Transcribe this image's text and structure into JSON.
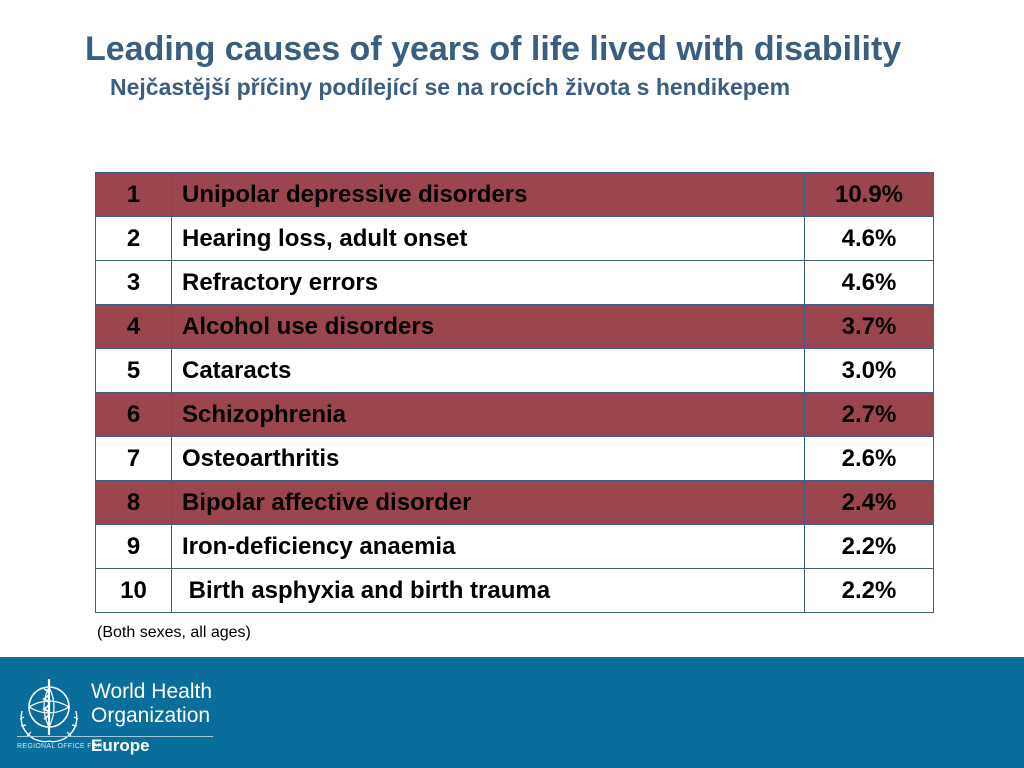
{
  "title": "Leading causes of years of life lived with disability",
  "subtitle": "Nejčastější příčiny podílející se na rocích života s hendikepem",
  "note": "(Both sexes, all ages)",
  "colors": {
    "title": "#3a5e82",
    "highlight_row": "#9b464f",
    "border": "#3f5f85",
    "footer": "#0a6e9d"
  },
  "chart_data": {
    "type": "table",
    "columns": [
      "",
      "",
      ""
    ],
    "rows": [
      {
        "rank": "1",
        "cause": "Unipolar depressive disorders",
        "share": "10.9%",
        "highlight": true
      },
      {
        "rank": "2",
        "cause": "Hearing loss, adult onset",
        "share": "4.6%",
        "highlight": false
      },
      {
        "rank": "3",
        "cause": "Refractory errors",
        "share": "4.6%",
        "highlight": false
      },
      {
        "rank": "4",
        "cause": "Alcohol use disorders",
        "share": "3.7%",
        "highlight": true
      },
      {
        "rank": "5",
        "cause": "Cataracts",
        "share": "3.0%",
        "highlight": false
      },
      {
        "rank": "6",
        "cause": "Schizophrenia",
        "share": "2.7%",
        "highlight": true
      },
      {
        "rank": "7",
        "cause": "Osteoarthritis",
        "share": "2.6%",
        "highlight": false
      },
      {
        "rank": "8",
        "cause": "Bipolar affective disorder",
        "share": "2.4%",
        "highlight": true
      },
      {
        "rank": "9",
        "cause": "Iron-deficiency anaemia",
        "share": "2.2%",
        "highlight": false
      },
      {
        "rank": "10",
        "cause": " Birth asphyxia and birth trauma",
        "share": "2.2%",
        "highlight": false
      }
    ]
  },
  "footer": {
    "org_line1": "World Health",
    "org_line2": "Organization",
    "region_label": "REGIONAL OFFICE FOR",
    "region_name": "Europe",
    "logo_icon": "who-emblem-icon"
  }
}
